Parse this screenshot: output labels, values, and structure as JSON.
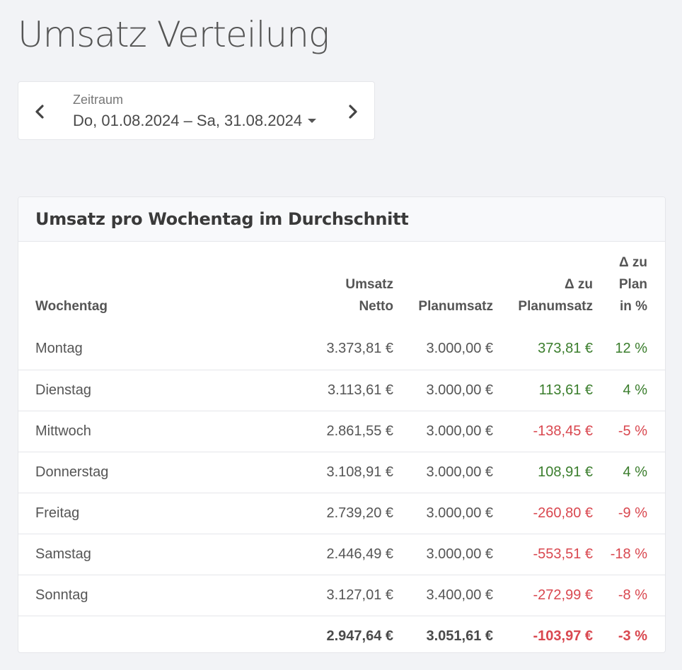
{
  "page": {
    "title": "Umsatz Verteilung"
  },
  "date_range": {
    "label": "Zeitraum",
    "value": "Do, 01.08.2024 – Sa, 31.08.2024",
    "prev_icon": "chevron-left-icon",
    "next_icon": "chevron-right-icon"
  },
  "card": {
    "title": "Umsatz pro Wochentag im Durchschnitt",
    "headers": {
      "day": "Wochentag",
      "net_1": "Umsatz",
      "net_2": "Netto",
      "plan": "Planumsatz",
      "diff_1": "Δ zu",
      "diff_2": "Planumsatz",
      "pct_1": "Δ zu",
      "pct_2": "Plan",
      "pct_3": "in %"
    },
    "rows": [
      {
        "day": "Montag",
        "net": "3.373,81 €",
        "plan": "3.000,00 €",
        "diff": "373,81 €",
        "pct": "12 %",
        "trend": "pos"
      },
      {
        "day": "Dienstag",
        "net": "3.113,61 €",
        "plan": "3.000,00 €",
        "diff": "113,61 €",
        "pct": "4 %",
        "trend": "pos"
      },
      {
        "day": "Mittwoch",
        "net": "2.861,55 €",
        "plan": "3.000,00 €",
        "diff": "-138,45 €",
        "pct": "-5 %",
        "trend": "neg"
      },
      {
        "day": "Donnerstag",
        "net": "3.108,91 €",
        "plan": "3.000,00 €",
        "diff": "108,91 €",
        "pct": "4 %",
        "trend": "pos"
      },
      {
        "day": "Freitag",
        "net": "2.739,20 €",
        "plan": "3.000,00 €",
        "diff": "-260,80 €",
        "pct": "-9 %",
        "trend": "neg"
      },
      {
        "day": "Samstag",
        "net": "2.446,49 €",
        "plan": "3.000,00 €",
        "diff": "-553,51 €",
        "pct": "-18 %",
        "trend": "neg"
      },
      {
        "day": "Sonntag",
        "net": "3.127,01 €",
        "plan": "3.400,00 €",
        "diff": "-272,99 €",
        "pct": "-8 %",
        "trend": "neg"
      }
    ],
    "totals": {
      "net": "2.947,64 €",
      "plan": "3.051,61 €",
      "diff": "-103,97 €",
      "pct": "-3 %",
      "trend": "neg"
    }
  },
  "colors": {
    "positive": "#3a7d2c",
    "negative": "#d9474f",
    "background": "#f2f3f6"
  }
}
